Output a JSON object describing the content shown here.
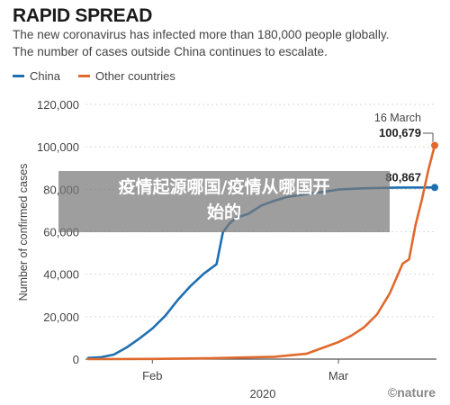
{
  "header": {
    "title": "RAPID SPREAD",
    "subtitle_line1": "The new coronavirus has infected more than 180,000 people globally.",
    "subtitle_line2": "The number of cases outside China continues to escalate."
  },
  "overlay": {
    "text": "疫情起源哪国/疫情从哪国开始的"
  },
  "credit": "©nature",
  "colors": {
    "china": "#1f6fb0",
    "other": "#e0692d"
  },
  "chart_data": {
    "type": "line",
    "ylabel": "Number of confirmed cases",
    "xlabel": "2020",
    "ylim": [
      0,
      120000
    ],
    "y_ticks": [
      "0",
      "20,000",
      "40,000",
      "60,000",
      "80,000",
      "100,000",
      "120,000"
    ],
    "x_ticks": [
      "Feb",
      "Mar"
    ],
    "legend_position": "top-left",
    "annotations": {
      "china_end": "80,867",
      "other_end_date": "16 March",
      "other_end_value": "100,679"
    },
    "series": [
      {
        "name": "China",
        "x": [
          "2020-01-22",
          "2020-01-24",
          "2020-01-26",
          "2020-01-28",
          "2020-01-30",
          "2020-02-01",
          "2020-02-03",
          "2020-02-05",
          "2020-02-07",
          "2020-02-09",
          "2020-02-11",
          "2020-02-12",
          "2020-02-13",
          "2020-02-14",
          "2020-02-16",
          "2020-02-18",
          "2020-02-20",
          "2020-02-22",
          "2020-02-24",
          "2020-02-26",
          "2020-02-28",
          "2020-03-01",
          "2020-03-05",
          "2020-03-10",
          "2020-03-16"
        ],
        "values": [
          550,
          900,
          2100,
          5500,
          9700,
          14400,
          20400,
          28000,
          34600,
          40200,
          44700,
          59800,
          63800,
          66500,
          68500,
          72400,
          74600,
          76400,
          77300,
          78200,
          78900,
          79900,
          80500,
          80800,
          80867
        ]
      },
      {
        "name": "Other countries",
        "x": [
          "2020-01-22",
          "2020-02-01",
          "2020-02-10",
          "2020-02-20",
          "2020-02-25",
          "2020-03-01",
          "2020-03-03",
          "2020-03-05",
          "2020-03-07",
          "2020-03-09",
          "2020-03-11",
          "2020-03-12",
          "2020-03-13",
          "2020-03-14",
          "2020-03-15",
          "2020-03-16"
        ],
        "values": [
          10,
          100,
          400,
          1100,
          2500,
          8000,
          11000,
          15000,
          21000,
          31000,
          45000,
          47000,
          63000,
          75000,
          89000,
          100679
        ]
      }
    ]
  }
}
